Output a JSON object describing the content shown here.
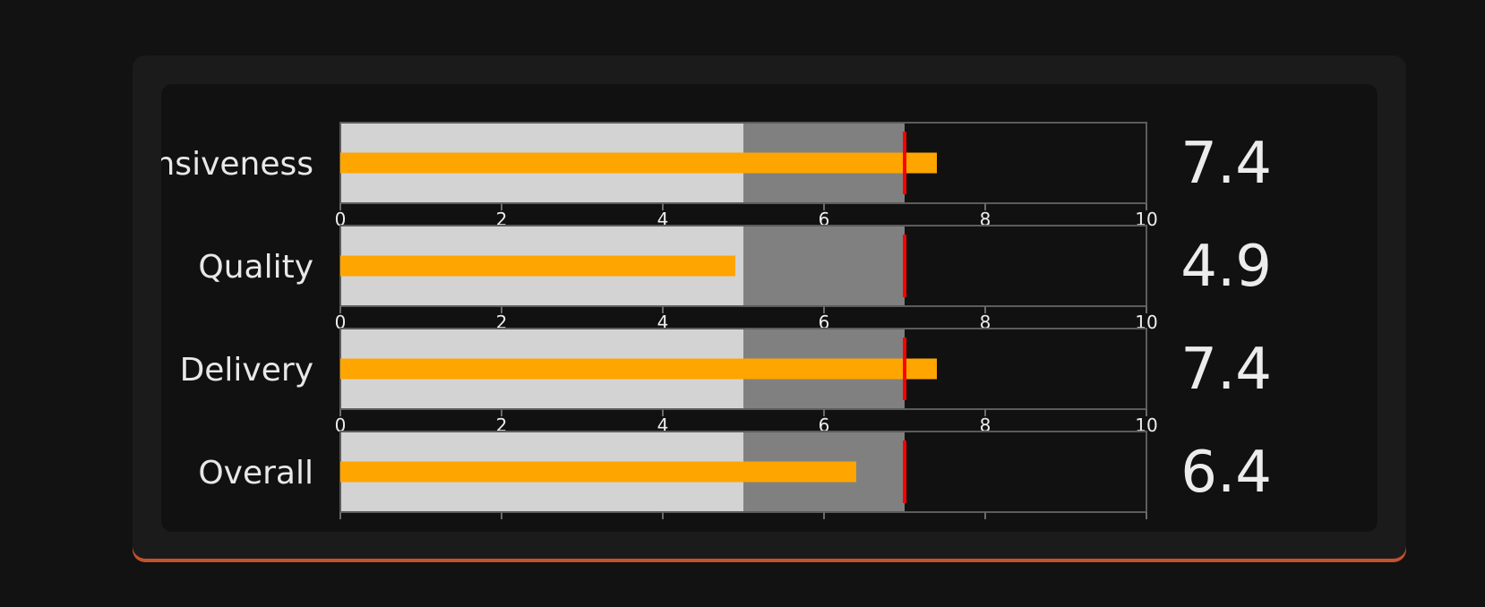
{
  "chart_data": {
    "type": "bullet",
    "axis": {
      "min": 0,
      "max": 10,
      "ticks": [
        0,
        2,
        4,
        6,
        8,
        10
      ]
    },
    "ranges": [
      5,
      7,
      10
    ],
    "target": 7,
    "colors": {
      "range_low": "#d3d3d3",
      "range_mid": "#808080",
      "range_high": "#111111",
      "bar": "#ffa500",
      "target": "#ff0000",
      "accent": "#c2532a"
    },
    "rows": [
      {
        "label": "Responsiveness",
        "value": 7.4,
        "display": "7.4"
      },
      {
        "label": "Quality",
        "value": 4.9,
        "display": "4.9"
      },
      {
        "label": "Delivery",
        "value": 7.4,
        "display": "7.4"
      },
      {
        "label": "Overall",
        "value": 6.4,
        "display": "6.4"
      }
    ]
  }
}
